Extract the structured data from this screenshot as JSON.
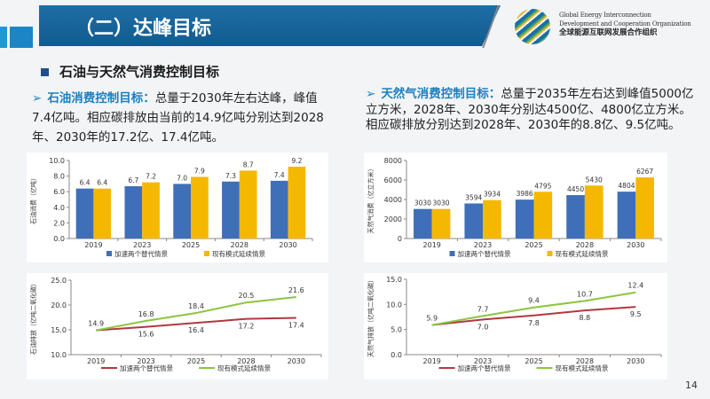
{
  "header": {
    "title": "（二）达峰目标",
    "org_en_1": "Global Energy Interconnection",
    "org_en_2": "Development and Cooperation Organization",
    "org_cn": "全球能源互联网发展合作组织"
  },
  "section": {
    "heading": "石油与天然气消费控制目标"
  },
  "oil_text": {
    "keyword": "石油消费控制目标：",
    "body": "总量于2030年左右达峰，峰值7.4亿吨。相应碳排放由当前的14.9亿吨分别达到2028年、2030年的17.2亿、17.4亿吨。"
  },
  "gas_text": {
    "keyword": "天然气消费控制目标：",
    "body": "总量于2035年左右达到峰值5000亿立方米，2028年、2030年分别达4500亿、4800亿立方米。相应碳排放分别达到2028年、2030年的8.8亿、9.5亿吨。"
  },
  "page_number": "14",
  "colors": {
    "title_bar": "#1d6ea6",
    "series_a_bar": "#3f6fb8",
    "series_b_bar": "#f5b800",
    "series_a_line": "#b0393f",
    "series_b_line": "#8cc63f"
  },
  "chart_data": [
    {
      "type": "bar",
      "ylabel": "石油消费（亿吨）",
      "categories": [
        "2019",
        "2023",
        "2025",
        "2028",
        "2030"
      ],
      "ylim": [
        0,
        10
      ],
      "yticks": [
        "0.0",
        "2.0",
        "4.0",
        "6.0",
        "8.0",
        "10.0"
      ],
      "legend": "bottom",
      "series": [
        {
          "name": "加速两个替代情景",
          "values": [
            6.4,
            6.7,
            7.0,
            7.3,
            7.4
          ],
          "labels": [
            "6.4",
            "6.7",
            "7.0",
            "7.3",
            "7.4"
          ]
        },
        {
          "name": "现有模式延续情景",
          "values": [
            6.4,
            7.2,
            7.9,
            8.7,
            9.2
          ],
          "labels": [
            "6.4",
            "7.2",
            "7.9",
            "8.7",
            "9.2"
          ]
        }
      ]
    },
    {
      "type": "bar",
      "ylabel": "天然气消费（亿立方米）",
      "categories": [
        "2019",
        "2023",
        "2025",
        "2028",
        "2030"
      ],
      "ylim": [
        0,
        8000
      ],
      "yticks": [
        "0",
        "2000",
        "4000",
        "6000",
        "8000"
      ],
      "legend": "bottom",
      "series": [
        {
          "name": "加速两个替代情景",
          "values": [
            3030,
            3594,
            3986,
            4450,
            4804
          ],
          "labels": [
            "3030",
            "3594",
            "3986",
            "4450",
            "4804"
          ]
        },
        {
          "name": "现有模式延续情景",
          "values": [
            3030,
            3934,
            4795,
            5430,
            6267
          ],
          "labels": [
            "3030",
            "3934",
            "4795",
            "5430",
            "6267"
          ]
        }
      ]
    },
    {
      "type": "line",
      "ylabel": "石油排放（亿吨二氧化碳）",
      "categories": [
        "2019",
        "2023",
        "2025",
        "2028",
        "2030"
      ],
      "ylim": [
        10,
        25
      ],
      "yticks": [
        "10.0",
        "15.0",
        "20.0",
        "25.0"
      ],
      "legend": "bottom",
      "series": [
        {
          "name": "加速两个替代情景",
          "values": [
            14.9,
            15.6,
            16.4,
            17.2,
            17.4
          ],
          "labels": [
            "14.9",
            "15.6",
            "16.4",
            "17.2",
            "17.4"
          ]
        },
        {
          "name": "现有模式延续情景",
          "values": [
            14.9,
            16.8,
            18.4,
            20.5,
            21.6
          ],
          "labels": [
            "",
            "16.8",
            "18.4",
            "20.5",
            "21.6"
          ]
        }
      ]
    },
    {
      "type": "line",
      "ylabel": "天然气排放（亿吨二氧化碳）",
      "categories": [
        "2019",
        "2023",
        "2025",
        "2028",
        "2030"
      ],
      "ylim": [
        0,
        15
      ],
      "yticks": [
        "0.0",
        "5.0",
        "10.0",
        "15.0"
      ],
      "legend": "bottom",
      "series": [
        {
          "name": "加速两个替代情景",
          "values": [
            5.9,
            7.0,
            7.8,
            8.8,
            9.5
          ],
          "labels": [
            "5.9",
            "7.0",
            "7.8",
            "8.8",
            "9.5"
          ]
        },
        {
          "name": "现有模式延续情景",
          "values": [
            5.9,
            7.7,
            9.4,
            10.7,
            12.4
          ],
          "labels": [
            "",
            "7.7",
            "9.4",
            "10.7",
            "12.4"
          ]
        }
      ]
    }
  ]
}
